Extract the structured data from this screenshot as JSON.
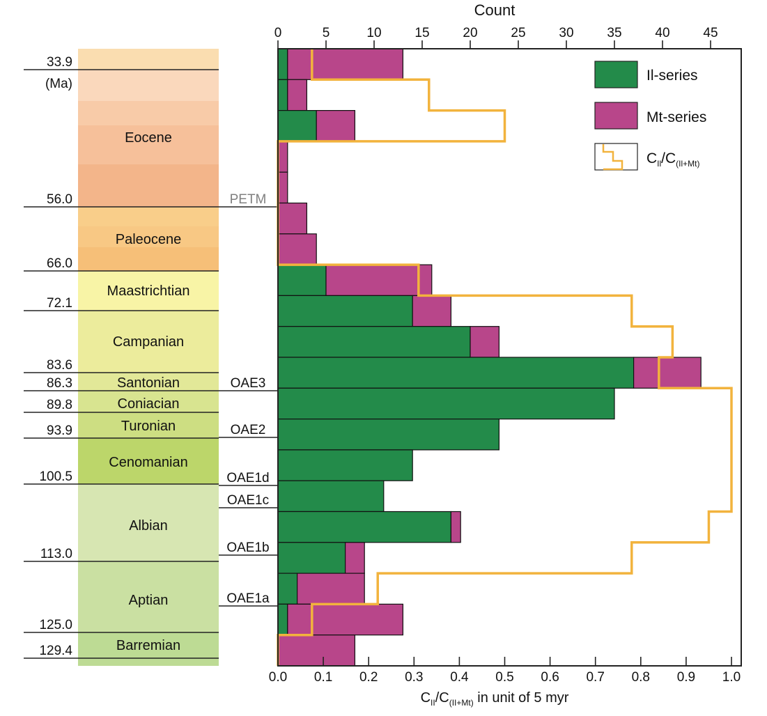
{
  "chart_data": {
    "type": "bar",
    "orientation": "horizontal-stacked",
    "title": "",
    "top_axis": {
      "label": "Count",
      "range": [
        0,
        48
      ],
      "ticks": [
        0,
        5,
        10,
        15,
        20,
        25,
        30,
        35,
        40,
        45
      ]
    },
    "bottom_axis": {
      "label_main": "C",
      "label_sub1": "II",
      "label_mid": "/C",
      "label_sub2": "(II+Mt)",
      "label_tail": " in unit of 5 myr",
      "range": [
        0,
        1.0
      ],
      "ticks": [
        "0.0",
        "0.1",
        "0.2",
        "0.3",
        "0.4",
        "0.5",
        "0.6",
        "0.7",
        "0.8",
        "0.9",
        "1.0"
      ]
    },
    "bins_note": "20 bins of 5 myr, top (youngest) to bottom (oldest)",
    "series": [
      {
        "name": "Il-series",
        "color": "#238B4A",
        "values": [
          1,
          1,
          4,
          0,
          0,
          0,
          0,
          5,
          14,
          20,
          37,
          35,
          23,
          14,
          11,
          18,
          7,
          2,
          1,
          0
        ]
      },
      {
        "name": "Mt-series",
        "color": "#B8468A",
        "values": [
          12,
          2,
          4,
          1,
          1,
          3,
          4,
          11,
          4,
          3,
          7,
          0,
          0,
          0,
          0,
          1,
          2,
          7,
          12,
          8
        ]
      },
      {
        "name": "C_Il/C_(Il+Mt)",
        "color": "#F2B33D",
        "type": "step",
        "values": [
          0.075,
          0.333,
          0.5,
          0,
          0,
          0,
          0,
          0.31,
          0.78,
          0.87,
          0.84,
          1.0,
          1.0,
          1.0,
          1.0,
          0.95,
          0.78,
          0.22,
          0.075,
          0
        ]
      }
    ],
    "legend": {
      "position": "top-right",
      "items": [
        {
          "label": "Il-series"
        },
        {
          "label": "Mt-series"
        },
        {
          "label_main": "C",
          "label_sub1": "Il",
          "label_mid": "/C",
          "label_sub2": "(Il+Mt)"
        }
      ]
    },
    "time_scale": {
      "unit": "(Ma)",
      "boundaries": [
        "33.9",
        "56.0",
        "66.0",
        "72.1",
        "83.6",
        "86.3",
        "89.8",
        "93.9",
        "100.5",
        "113.0",
        "125.0",
        "129.4"
      ],
      "stages": [
        "Eocene",
        "Paleocene",
        "Maastrichtian",
        "Campanian",
        "Santonian",
        "Coniacian",
        "Turonian",
        "Cenomanian",
        "Albian",
        "Aptian",
        "Barremian"
      ],
      "events": [
        "PETM",
        "OAE3",
        "OAE2",
        "OAE1d",
        "OAE1c",
        "OAE1b",
        "OAE1a"
      ]
    }
  },
  "colors": {
    "green": "#238B4A",
    "magenta": "#B8468A",
    "orange": "#F2B33D",
    "petm": "#808080"
  }
}
